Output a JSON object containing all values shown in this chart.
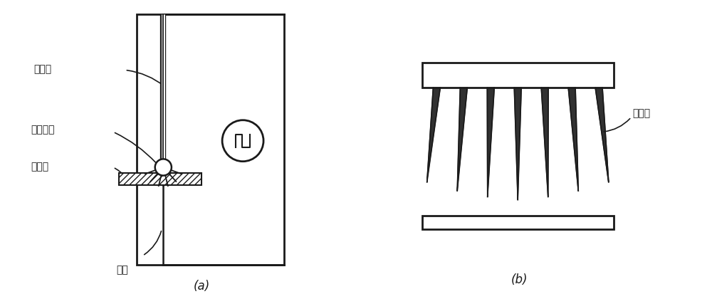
{
  "bg_color": "#ffffff",
  "line_color": "#1a1a1a",
  "label_a": "(a)",
  "label_b": "(b)",
  "text_yinjixian": "阴极线",
  "text_dianyun": "电晕放电",
  "text_piaoyiqu": "漂移区",
  "text_yangji": "阳极",
  "text_jinsuzhen": "金属针"
}
